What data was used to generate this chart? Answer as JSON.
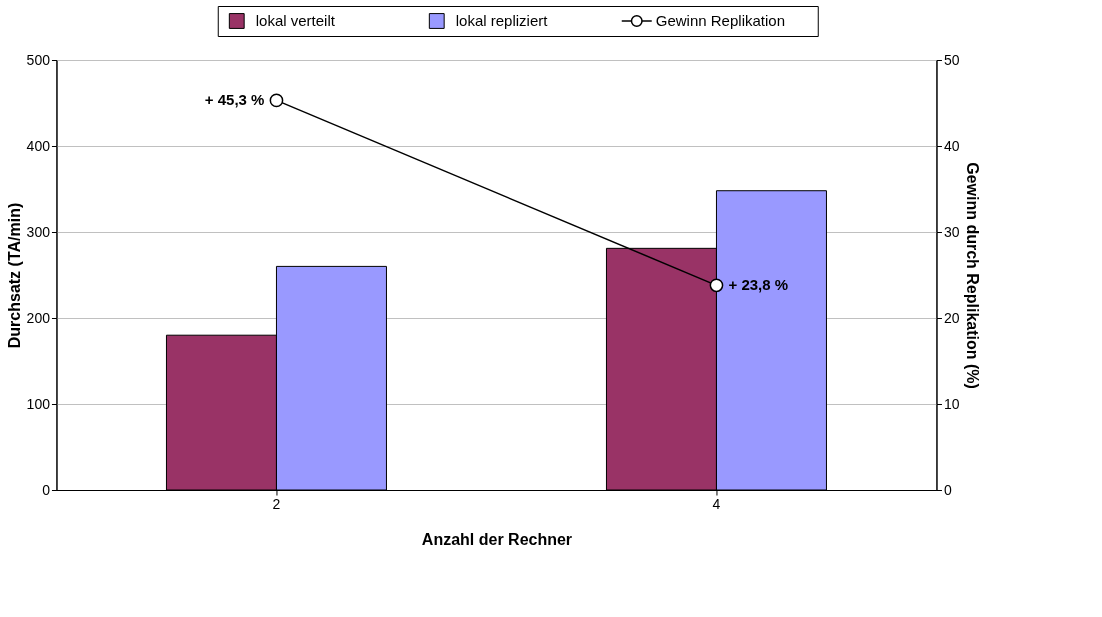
{
  "chart_data": {
    "type": "bar",
    "xlabel": "Anzahl der Rechner",
    "ylabel": "Durchsatz (TA/min)",
    "y2label": "Gewinn durch Replikation (%)",
    "categories": [
      "2",
      "4"
    ],
    "series": [
      {
        "name": "lokal verteilt",
        "color": "#993366",
        "values": [
          180,
          281
        ]
      },
      {
        "name": "lokal repliziert",
        "color": "#9999ff",
        "values": [
          260,
          348
        ]
      },
      {
        "name": "Gewinn Replikation",
        "color": "#000000",
        "type": "line",
        "axis": "y2",
        "marker": "circle",
        "line_style": "solid",
        "values": [
          45.3,
          23.8
        ],
        "value_labels": [
          "+ 45,3 %",
          "+ 23,8 %"
        ]
      }
    ],
    "ylim": [
      0,
      500
    ],
    "yticks": [
      0,
      100,
      200,
      300,
      400,
      500
    ],
    "y2lim": [
      0,
      50
    ],
    "y2ticks": [
      0,
      10,
      20,
      30,
      40,
      50
    ],
    "grid": "y",
    "legend": "top"
  }
}
